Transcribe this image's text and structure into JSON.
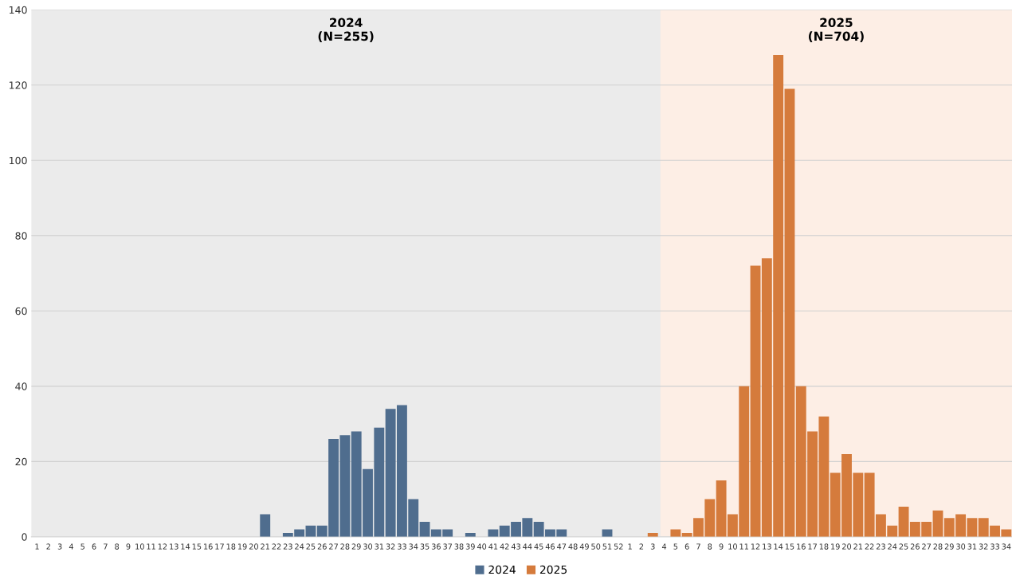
{
  "chart_data": {
    "type": "bar",
    "categories": [
      "1",
      "2",
      "3",
      "4",
      "5",
      "6",
      "7",
      "8",
      "9",
      "10",
      "11",
      "12",
      "13",
      "14",
      "15",
      "16",
      "17",
      "18",
      "19",
      "20",
      "21",
      "22",
      "23",
      "24",
      "25",
      "26",
      "27",
      "28",
      "29",
      "30",
      "31",
      "32",
      "33",
      "34",
      "35",
      "36",
      "37",
      "38",
      "39",
      "40",
      "41",
      "42",
      "43",
      "44",
      "45",
      "46",
      "47",
      "48",
      "49",
      "50",
      "51",
      "52",
      "1",
      "2",
      "3",
      "4",
      "5",
      "6",
      "7",
      "8",
      "9",
      "10",
      "11",
      "12",
      "13",
      "14",
      "15",
      "16",
      "17",
      "18",
      "19",
      "20",
      "21",
      "22",
      "23",
      "24",
      "25",
      "26",
      "27",
      "28",
      "29",
      "30",
      "31",
      "32",
      "33",
      "34"
    ],
    "series": [
      {
        "name": "2024",
        "color": "#4f6d8e",
        "values": [
          null,
          null,
          null,
          null,
          null,
          null,
          null,
          null,
          null,
          null,
          null,
          null,
          null,
          null,
          null,
          null,
          null,
          null,
          null,
          null,
          6,
          null,
          1,
          2,
          3,
          3,
          26,
          27,
          28,
          18,
          29,
          34,
          35,
          10,
          4,
          2,
          2,
          null,
          1,
          null,
          2,
          3,
          4,
          5,
          4,
          2,
          2,
          null,
          null,
          null,
          2,
          null,
          null,
          null,
          null,
          null,
          null,
          null,
          null,
          null,
          null,
          null,
          null,
          null,
          null,
          null,
          null,
          null,
          null,
          null,
          null,
          null,
          null,
          null,
          null,
          null,
          null,
          null,
          null,
          null,
          null,
          null,
          null,
          null,
          null,
          null
        ]
      },
      {
        "name": "2025",
        "color": "#d57b3c",
        "values": [
          null,
          null,
          null,
          null,
          null,
          null,
          null,
          null,
          null,
          null,
          null,
          null,
          null,
          null,
          null,
          null,
          null,
          null,
          null,
          null,
          null,
          null,
          null,
          null,
          null,
          null,
          null,
          null,
          null,
          null,
          null,
          null,
          null,
          null,
          null,
          null,
          null,
          null,
          null,
          null,
          null,
          null,
          null,
          null,
          null,
          null,
          null,
          null,
          null,
          null,
          null,
          null,
          null,
          null,
          1,
          null,
          2,
          1,
          5,
          10,
          15,
          6,
          40,
          72,
          74,
          128,
          119,
          40,
          28,
          32,
          17,
          22,
          17,
          17,
          6,
          3,
          8,
          4,
          4,
          7,
          5,
          6,
          5,
          5,
          3,
          2
        ]
      }
    ],
    "ylim": [
      0,
      140
    ],
    "yticks": [
      0,
      20,
      40,
      60,
      80,
      100,
      120,
      140
    ],
    "grid": "y",
    "legend": "bottom",
    "annotations": [
      "2024\n(N=255)",
      "2025\n(N=704)"
    ]
  }
}
